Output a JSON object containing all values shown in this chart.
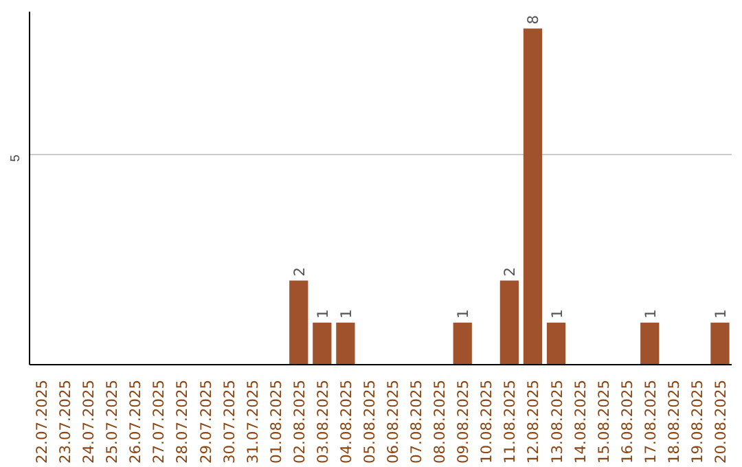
{
  "chart_data": {
    "type": "bar",
    "categories": [
      "22.07.2025",
      "23.07.2025",
      "24.07.2025",
      "25.07.2025",
      "26.07.2025",
      "27.07.2025",
      "28.07.2025",
      "29.07.2025",
      "30.07.2025",
      "31.07.2025",
      "01.08.2025",
      "02.08.2025",
      "03.08.2025",
      "04.08.2025",
      "05.08.2025",
      "06.08.2025",
      "07.08.2025",
      "08.08.2025",
      "09.08.2025",
      "10.08.2025",
      "11.08.2025",
      "12.08.2025",
      "13.08.2025",
      "14.08.2025",
      "15.08.2025",
      "16.08.2025",
      "17.08.2025",
      "18.08.2025",
      "19.08.2025",
      "20.08.2025"
    ],
    "values": [
      0,
      0,
      0,
      0,
      0,
      0,
      0,
      0,
      0,
      0,
      0,
      2,
      1,
      1,
      0,
      0,
      0,
      0,
      1,
      0,
      2,
      8,
      1,
      0,
      0,
      0,
      1,
      0,
      0,
      1
    ],
    "value_labels": [
      null,
      null,
      null,
      null,
      null,
      null,
      null,
      null,
      null,
      null,
      null,
      "2",
      "1",
      "1",
      null,
      null,
      null,
      null,
      "1",
      null,
      "2",
      "8",
      "1",
      null,
      null,
      null,
      "1",
      null,
      null,
      "1"
    ],
    "color": "#a0522d",
    "ylim": [
      0,
      8.4
    ],
    "yticks": [
      5
    ],
    "grid": "y"
  }
}
